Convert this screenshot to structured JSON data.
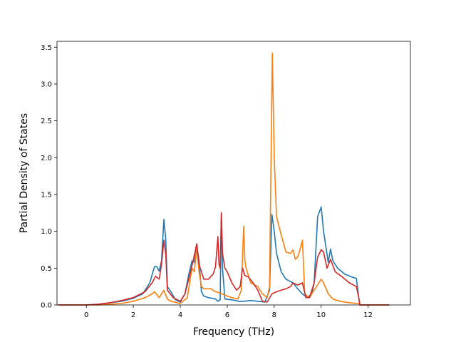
{
  "chart_data": {
    "type": "line",
    "title": "",
    "xlabel": "Frequency (THz)",
    "ylabel": "Partial Density of States",
    "xlim": [
      -1.25,
      13.8
    ],
    "ylim": [
      0,
      3.58
    ],
    "xticks": [
      0,
      2,
      4,
      6,
      8,
      10,
      12
    ],
    "xtick_labels": [
      "0",
      "2",
      "4",
      "6",
      "8",
      "10",
      "12"
    ],
    "yticks": [
      0.0,
      0.5,
      1.0,
      1.5,
      2.0,
      2.5,
      3.0,
      3.5
    ],
    "ytick_labels": [
      "0.0",
      "0.5",
      "1.0",
      "1.5",
      "2.0",
      "2.5",
      "3.0",
      "3.5"
    ],
    "grid": false,
    "legend": "none",
    "series": [
      {
        "color": "#1f77b4",
        "points": [
          [
            -1.2,
            0
          ],
          [
            -0.5,
            0
          ],
          [
            0,
            0
          ],
          [
            0.5,
            0.01
          ],
          [
            1,
            0.03
          ],
          [
            1.5,
            0.05
          ],
          [
            2,
            0.09
          ],
          [
            2.4,
            0.15
          ],
          [
            2.7,
            0.3
          ],
          [
            2.9,
            0.52
          ],
          [
            3.0,
            0.52
          ],
          [
            3.1,
            0.46
          ],
          [
            3.2,
            0.6
          ],
          [
            3.3,
            1.16
          ],
          [
            3.38,
            0.9
          ],
          [
            3.45,
            0.25
          ],
          [
            3.6,
            0.18
          ],
          [
            3.8,
            0.07
          ],
          [
            4.0,
            0.04
          ],
          [
            4.2,
            0.15
          ],
          [
            4.35,
            0.4
          ],
          [
            4.5,
            0.6
          ],
          [
            4.6,
            0.58
          ],
          [
            4.7,
            0.82
          ],
          [
            4.8,
            0.6
          ],
          [
            4.9,
            0.18
          ],
          [
            5.0,
            0.12
          ],
          [
            5.2,
            0.1
          ],
          [
            5.5,
            0.08
          ],
          [
            5.6,
            0.05
          ],
          [
            5.7,
            0.07
          ],
          [
            5.75,
            1.25
          ],
          [
            5.8,
            0.5
          ],
          [
            5.9,
            0.08
          ],
          [
            6.2,
            0.07
          ],
          [
            6.5,
            0.05
          ],
          [
            6.7,
            0.05
          ],
          [
            7.0,
            0.06
          ],
          [
            7.3,
            0.05
          ],
          [
            7.6,
            0.04
          ],
          [
            7.8,
            0.2
          ],
          [
            7.9,
            1.23
          ],
          [
            8.0,
            1.0
          ],
          [
            8.1,
            0.7
          ],
          [
            8.3,
            0.45
          ],
          [
            8.5,
            0.35
          ],
          [
            8.8,
            0.3
          ],
          [
            9.0,
            0.22
          ],
          [
            9.2,
            0.15
          ],
          [
            9.4,
            0.1
          ],
          [
            9.6,
            0.15
          ],
          [
            9.7,
            0.3
          ],
          [
            9.85,
            1.2
          ],
          [
            10.0,
            1.33
          ],
          [
            10.1,
            1.0
          ],
          [
            10.3,
            0.58
          ],
          [
            10.4,
            0.76
          ],
          [
            10.5,
            0.6
          ],
          [
            10.7,
            0.5
          ],
          [
            11.0,
            0.42
          ],
          [
            11.3,
            0.38
          ],
          [
            11.5,
            0.36
          ],
          [
            11.6,
            0.1
          ],
          [
            11.65,
            0
          ],
          [
            12.2,
            0
          ],
          [
            12.9,
            0
          ]
        ]
      },
      {
        "color": "#ff7f0e",
        "points": [
          [
            -1.2,
            0
          ],
          [
            0,
            0
          ],
          [
            0.5,
            0
          ],
          [
            1,
            0.01
          ],
          [
            1.5,
            0.02
          ],
          [
            2,
            0.05
          ],
          [
            2.5,
            0.1
          ],
          [
            2.8,
            0.15
          ],
          [
            2.9,
            0.18
          ],
          [
            3.1,
            0.1
          ],
          [
            3.3,
            0.2
          ],
          [
            3.45,
            0.08
          ],
          [
            3.6,
            0.05
          ],
          [
            4.0,
            0.02
          ],
          [
            4.3,
            0.1
          ],
          [
            4.5,
            0.5
          ],
          [
            4.6,
            0.45
          ],
          [
            4.7,
            0.78
          ],
          [
            4.8,
            0.45
          ],
          [
            4.9,
            0.25
          ],
          [
            5.0,
            0.22
          ],
          [
            5.3,
            0.22
          ],
          [
            5.5,
            0.18
          ],
          [
            5.8,
            0.15
          ],
          [
            6.0,
            0.12
          ],
          [
            6.2,
            0.1
          ],
          [
            6.45,
            0.08
          ],
          [
            6.6,
            0.2
          ],
          [
            6.7,
            1.07
          ],
          [
            6.75,
            0.6
          ],
          [
            6.8,
            0.5
          ],
          [
            7.0,
            0.3
          ],
          [
            7.3,
            0.25
          ],
          [
            7.5,
            0.15
          ],
          [
            7.7,
            0.1
          ],
          [
            7.8,
            0.25
          ],
          [
            7.92,
            3.42
          ],
          [
            8.0,
            2.0
          ],
          [
            8.1,
            1.2
          ],
          [
            8.3,
            0.95
          ],
          [
            8.5,
            0.72
          ],
          [
            8.7,
            0.7
          ],
          [
            8.8,
            0.75
          ],
          [
            8.9,
            0.62
          ],
          [
            9.0,
            0.65
          ],
          [
            9.1,
            0.75
          ],
          [
            9.2,
            0.88
          ],
          [
            9.25,
            0.55
          ],
          [
            9.3,
            0.15
          ],
          [
            9.5,
            0.1
          ],
          [
            9.7,
            0.2
          ],
          [
            9.9,
            0.3
          ],
          [
            10.0,
            0.35
          ],
          [
            10.1,
            0.3
          ],
          [
            10.3,
            0.15
          ],
          [
            10.5,
            0.08
          ],
          [
            10.8,
            0.05
          ],
          [
            11.2,
            0.03
          ],
          [
            11.6,
            0.02
          ],
          [
            11.7,
            0
          ],
          [
            12.9,
            0
          ]
        ]
      },
      {
        "color": "#d62728",
        "points": [
          [
            -1.2,
            0
          ],
          [
            0,
            0
          ],
          [
            0.5,
            0.01
          ],
          [
            1,
            0.03
          ],
          [
            1.5,
            0.06
          ],
          [
            2,
            0.1
          ],
          [
            2.5,
            0.18
          ],
          [
            2.8,
            0.3
          ],
          [
            2.95,
            0.39
          ],
          [
            3.1,
            0.35
          ],
          [
            3.2,
            0.55
          ],
          [
            3.3,
            0.88
          ],
          [
            3.38,
            0.7
          ],
          [
            3.45,
            0.2
          ],
          [
            3.7,
            0.1
          ],
          [
            4.0,
            0.05
          ],
          [
            4.2,
            0.15
          ],
          [
            4.4,
            0.4
          ],
          [
            4.55,
            0.6
          ],
          [
            4.7,
            0.83
          ],
          [
            4.8,
            0.55
          ],
          [
            5.0,
            0.35
          ],
          [
            5.2,
            0.35
          ],
          [
            5.4,
            0.42
          ],
          [
            5.5,
            0.52
          ],
          [
            5.6,
            0.93
          ],
          [
            5.65,
            0.55
          ],
          [
            5.7,
            0.5
          ],
          [
            5.75,
            1.25
          ],
          [
            5.8,
            0.7
          ],
          [
            5.9,
            0.5
          ],
          [
            6.0,
            0.45
          ],
          [
            6.2,
            0.3
          ],
          [
            6.4,
            0.2
          ],
          [
            6.55,
            0.25
          ],
          [
            6.65,
            0.5
          ],
          [
            6.75,
            0.4
          ],
          [
            6.9,
            0.38
          ],
          [
            7.1,
            0.3
          ],
          [
            7.3,
            0.2
          ],
          [
            7.5,
            0.05
          ],
          [
            7.7,
            0.04
          ],
          [
            7.9,
            0.15
          ],
          [
            8.1,
            0.18
          ],
          [
            8.3,
            0.2
          ],
          [
            8.5,
            0.22
          ],
          [
            8.7,
            0.25
          ],
          [
            8.8,
            0.3
          ],
          [
            9.0,
            0.27
          ],
          [
            9.2,
            0.3
          ],
          [
            9.35,
            0.1
          ],
          [
            9.5,
            0.1
          ],
          [
            9.7,
            0.3
          ],
          [
            9.85,
            0.65
          ],
          [
            10.0,
            0.75
          ],
          [
            10.1,
            0.72
          ],
          [
            10.25,
            0.5
          ],
          [
            10.4,
            0.62
          ],
          [
            10.6,
            0.45
          ],
          [
            10.9,
            0.38
          ],
          [
            11.2,
            0.3
          ],
          [
            11.5,
            0.25
          ],
          [
            11.6,
            0.1
          ],
          [
            11.65,
            0
          ],
          [
            12.9,
            0
          ]
        ]
      }
    ]
  }
}
